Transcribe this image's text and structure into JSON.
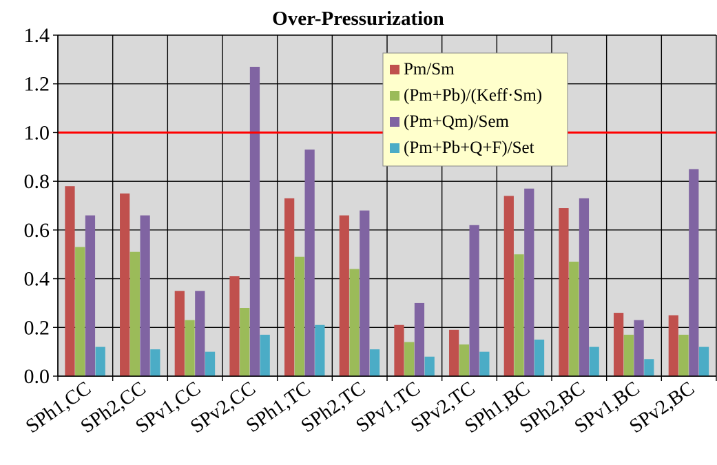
{
  "chart_data": {
    "type": "bar",
    "title": "Over-Pressurization",
    "xlabel": "",
    "ylabel": "",
    "ylim": [
      0,
      1.4
    ],
    "yticks": [
      "0.0",
      "0.2",
      "0.4",
      "0.6",
      "0.8",
      "1.0",
      "1.2",
      "1.4"
    ],
    "grid": true,
    "legend_position": "top-center",
    "reference_line": {
      "value": 1.0,
      "color": "#ff0000"
    },
    "categories": [
      "SPh1,CC",
      "SPh2,CC",
      "SPv1,CC",
      "SPv2,CC",
      "SPh1,TC",
      "SPh2,TC",
      "SPv1,TC",
      "SPv2,TC",
      "SPh1,BC",
      "SPh2,BC",
      "SPv1,BC",
      "SPv2,BC"
    ],
    "series": [
      {
        "name": "Pm/Sm",
        "color": "#c0504d",
        "values": [
          0.78,
          0.75,
          0.35,
          0.41,
          0.73,
          0.66,
          0.21,
          0.19,
          0.74,
          0.69,
          0.26,
          0.25
        ]
      },
      {
        "name": "(Pm+Pb)/(Keff·Sm)",
        "color": "#9bbb59",
        "values": [
          0.53,
          0.51,
          0.23,
          0.28,
          0.49,
          0.44,
          0.14,
          0.13,
          0.5,
          0.47,
          0.17,
          0.17
        ]
      },
      {
        "name": "(Pm+Qm)/Sem",
        "color": "#8064a2",
        "values": [
          0.66,
          0.66,
          0.35,
          1.27,
          0.93,
          0.68,
          0.3,
          0.62,
          0.77,
          0.73,
          0.23,
          0.85
        ]
      },
      {
        "name": "(Pm+Pb+Q+F)/Set",
        "color": "#4bacc6",
        "values": [
          0.12,
          0.11,
          0.1,
          0.17,
          0.21,
          0.11,
          0.08,
          0.1,
          0.15,
          0.12,
          0.07,
          0.12
        ]
      }
    ],
    "colors": {
      "plot_background": "#d9d9d9",
      "legend_background": "#ffffcc",
      "gridline": "#000000"
    }
  }
}
